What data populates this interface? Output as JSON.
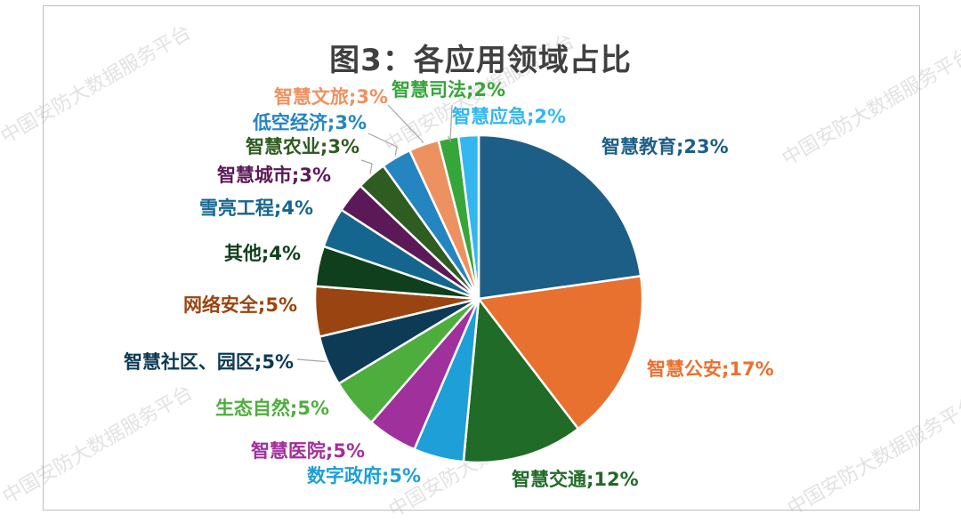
{
  "chart_data": {
    "type": "pie",
    "title": "图3：各应用领域占比",
    "separator": ";",
    "slices": [
      {
        "label": "智慧教育",
        "value": 23,
        "display": "23%",
        "color": "#1d5e86"
      },
      {
        "label": "智慧公安",
        "value": 17,
        "display": "17%",
        "color": "#e8712f"
      },
      {
        "label": "智慧交通",
        "value": 12,
        "display": "12%",
        "color": "#1f6b27"
      },
      {
        "label": "数字政府",
        "value": 5,
        "display": "5%",
        "color": "#1e9fd8"
      },
      {
        "label": "智慧医院",
        "value": 5,
        "display": "5%",
        "color": "#a0309c"
      },
      {
        "label": "生态自然",
        "value": 5,
        "display": "5%",
        "color": "#4eae3d"
      },
      {
        "label": "智慧社区、园区",
        "value": 5,
        "display": "5%",
        "color": "#0d3a54"
      },
      {
        "label": "网络安全",
        "value": 5,
        "display": "5%",
        "color": "#9a4511"
      },
      {
        "label": "其他",
        "value": 4,
        "display": "4%",
        "color": "#0f3f1c"
      },
      {
        "label": "雪亮工程",
        "value": 4,
        "display": "4%",
        "color": "#15668e"
      },
      {
        "label": "智慧城市",
        "value": 3,
        "display": "3%",
        "color": "#5b1a57"
      },
      {
        "label": "智慧农业",
        "value": 3,
        "display": "3%",
        "color": "#2e5c21"
      },
      {
        "label": "低空经济",
        "value": 3,
        "display": "3%",
        "color": "#2585c1"
      },
      {
        "label": "智慧文旅",
        "value": 3,
        "display": "3%",
        "color": "#ee9160"
      },
      {
        "label": "智慧司法",
        "value": 2,
        "display": "2%",
        "color": "#36a63a"
      },
      {
        "label": "智慧应急",
        "value": 2,
        "display": "2%",
        "color": "#34b7ee"
      }
    ]
  },
  "watermark": "中国安防大数据服务平台"
}
